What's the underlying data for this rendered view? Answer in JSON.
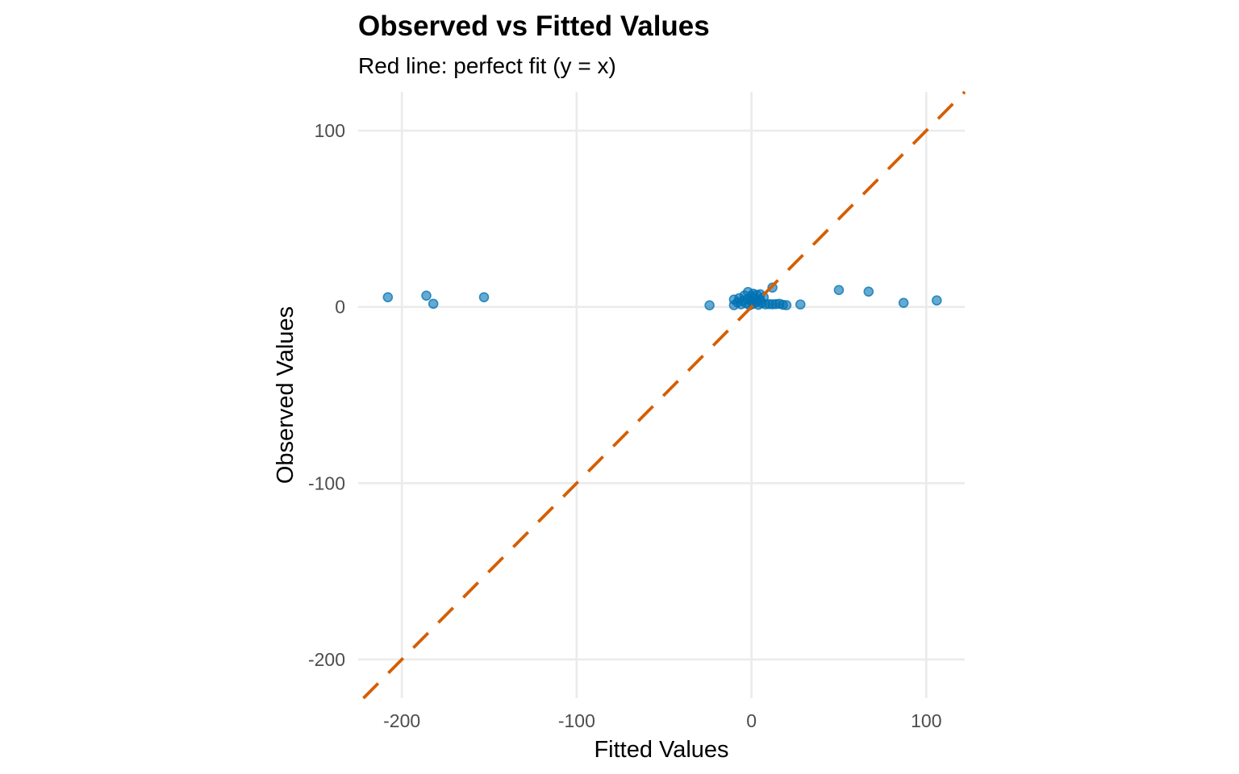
{
  "chart_data": {
    "type": "scatter",
    "title": "Observed vs Fitted Values",
    "subtitle": "Red line: perfect fit (y = x)",
    "xlabel": "Fitted Values",
    "ylabel": "Observed Values",
    "xlim": [
      -225,
      122
    ],
    "ylim": [
      -222,
      122
    ],
    "x_ticks": [
      -200,
      -100,
      0,
      100
    ],
    "y_ticks": [
      -200,
      -100,
      0,
      100
    ],
    "x_tick_labels": [
      "-200",
      "-100",
      "0",
      "100"
    ],
    "y_tick_labels": [
      "-200",
      "-100",
      "0",
      "100"
    ],
    "grid": true,
    "legend": "none",
    "point_color": "#0072B2",
    "reference_line": {
      "label": "y = x",
      "slope": 1,
      "intercept": 0,
      "color": "#D55E00",
      "style": "dashed"
    },
    "points": [
      {
        "x": -208,
        "y": 5.5
      },
      {
        "x": -186,
        "y": 6.4
      },
      {
        "x": -182,
        "y": 1.8
      },
      {
        "x": -153,
        "y": 5.5
      },
      {
        "x": -24,
        "y": 0.9
      },
      {
        "x": -10,
        "y": 1.0
      },
      {
        "x": -10,
        "y": 4.2
      },
      {
        "x": -8,
        "y": 2.5
      },
      {
        "x": -7,
        "y": 5.0
      },
      {
        "x": -6,
        "y": 1.5
      },
      {
        "x": -5,
        "y": 3.5
      },
      {
        "x": -4,
        "y": 6.5
      },
      {
        "x": -3,
        "y": 2.0
      },
      {
        "x": -2,
        "y": 8.5
      },
      {
        "x": -2,
        "y": 4.5
      },
      {
        "x": -1,
        "y": 1.0
      },
      {
        "x": 0,
        "y": 6.0
      },
      {
        "x": 0,
        "y": 3.0
      },
      {
        "x": 1,
        "y": 7.5
      },
      {
        "x": 1,
        "y": 1.8
      },
      {
        "x": 2,
        "y": 4.8
      },
      {
        "x": 3,
        "y": 2.8
      },
      {
        "x": 3,
        "y": 6.8
      },
      {
        "x": 4,
        "y": 1.2
      },
      {
        "x": 5,
        "y": 4.0
      },
      {
        "x": 5,
        "y": 7.2
      },
      {
        "x": 6,
        "y": 2.2
      },
      {
        "x": 7,
        "y": 5.5
      },
      {
        "x": 8,
        "y": 1.5
      },
      {
        "x": 10,
        "y": 1.6
      },
      {
        "x": 12,
        "y": 11.0
      },
      {
        "x": 12,
        "y": 1.5
      },
      {
        "x": 14,
        "y": 1.6
      },
      {
        "x": 16,
        "y": 1.8
      },
      {
        "x": 18,
        "y": 1.2
      },
      {
        "x": 20,
        "y": 1.0
      },
      {
        "x": 28,
        "y": 1.4
      },
      {
        "x": 50,
        "y": 9.6
      },
      {
        "x": 67,
        "y": 8.7
      },
      {
        "x": 87,
        "y": 2.3
      },
      {
        "x": 106,
        "y": 3.7
      }
    ]
  }
}
